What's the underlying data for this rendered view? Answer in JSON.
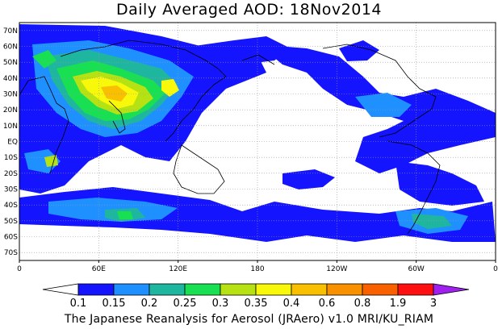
{
  "title": "Daily Averaged AOD: 18Nov2014",
  "credit": "The Japanese Reanalysis for Aerosol (JRAero) v1.0 MRI/KU_RIAM",
  "lat_labels": [
    "70N",
    "60N",
    "50N",
    "40N",
    "30N",
    "20N",
    "10N",
    "EQ",
    "10S",
    "20S",
    "30S",
    "40S",
    "50S",
    "60S",
    "70S"
  ],
  "lon_labels": [
    "0",
    "60E",
    "120E",
    "180",
    "120W",
    "60W",
    "0"
  ],
  "colorbar": {
    "levels": [
      "0.1",
      "0.15",
      "0.2",
      "0.25",
      "0.3",
      "0.35",
      "0.4",
      "0.6",
      "0.8",
      "1.9",
      "3"
    ],
    "colors": [
      "#ffffff",
      "#1414ff",
      "#1e90ff",
      "#1fb6a0",
      "#18e052",
      "#b6e214",
      "#f8f80a",
      "#f8c000",
      "#f89000",
      "#f86000",
      "#ff1010",
      "#a020f0"
    ]
  },
  "map": {
    "lon_range": [
      0,
      360
    ],
    "lat_range": [
      -75,
      75
    ],
    "grid": "dotted",
    "field": "aerosol optical depth"
  }
}
